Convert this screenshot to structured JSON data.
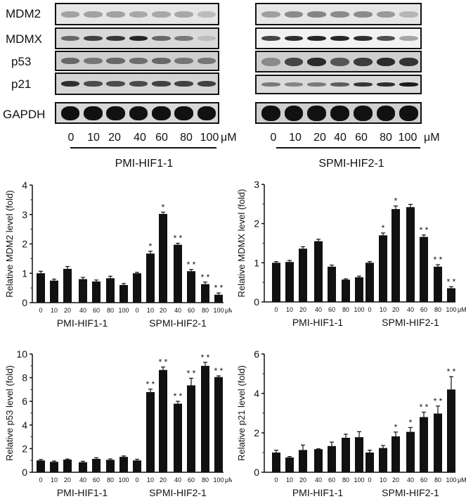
{
  "western_blot": {
    "row_labels": [
      "MDM2",
      "MDMX",
      "p53",
      "p21",
      "GAPDH"
    ],
    "lanes": [
      "0",
      "10",
      "20",
      "40",
      "60",
      "80",
      "100"
    ],
    "unit": "μM",
    "left_group": "PMI-HIF1-1",
    "right_group": "SPMI-HIF2-1"
  },
  "chart_data": [
    {
      "type": "bar",
      "title": "",
      "ylabel": "Relative MDM2 level (fold)",
      "xlabel": "",
      "ylim": [
        0,
        4
      ],
      "yticks": [
        0,
        1,
        2,
        3,
        4
      ],
      "categories": [
        "0",
        "10",
        "20",
        "40",
        "60",
        "80",
        "100"
      ],
      "unit": "μM",
      "grid": false,
      "series": [
        {
          "name": "PMI-HIF1-1",
          "values": [
            1.0,
            0.75,
            1.15,
            0.8,
            0.72,
            0.83,
            0.6
          ],
          "errors": [
            0.07,
            0.05,
            0.08,
            0.06,
            0.05,
            0.07,
            0.05
          ],
          "significance": [
            "",
            "",
            "",
            "",
            "",
            "",
            ""
          ]
        },
        {
          "name": "SPMI-HIF2-1",
          "values": [
            1.0,
            1.67,
            3.02,
            1.97,
            1.07,
            0.63,
            0.27
          ],
          "errors": [
            0.03,
            0.08,
            0.06,
            0.05,
            0.06,
            0.07,
            0.06
          ],
          "significance": [
            "",
            "*",
            "*",
            "**",
            "**",
            "**",
            "**"
          ]
        }
      ]
    },
    {
      "type": "bar",
      "title": "",
      "ylabel": "Relative MDMX level (fold)",
      "xlabel": "",
      "ylim": [
        0,
        3
      ],
      "yticks": [
        0,
        1,
        2,
        3
      ],
      "categories": [
        "0",
        "10",
        "20",
        "40",
        "60",
        "80",
        "100"
      ],
      "unit": "μM",
      "grid": false,
      "series": [
        {
          "name": "PMI-HIF1-1",
          "values": [
            1.0,
            1.02,
            1.36,
            1.55,
            0.9,
            0.57,
            0.63
          ],
          "errors": [
            0.03,
            0.04,
            0.05,
            0.05,
            0.04,
            0.02,
            0.03
          ],
          "significance": [
            "",
            "",
            "",
            "",
            "",
            "",
            ""
          ]
        },
        {
          "name": "SPMI-HIF2-1",
          "values": [
            1.0,
            1.7,
            2.37,
            2.42,
            1.66,
            0.9,
            0.35
          ],
          "errors": [
            0.03,
            0.06,
            0.08,
            0.07,
            0.05,
            0.05,
            0.04
          ],
          "significance": [
            "",
            "*",
            "*",
            "",
            "**",
            "**",
            "**"
          ]
        }
      ]
    },
    {
      "type": "bar",
      "title": "",
      "ylabel": "Relative p53 level (fold)",
      "xlabel": "",
      "ylim": [
        0,
        10
      ],
      "yticks": [
        0,
        2,
        4,
        6,
        8,
        10
      ],
      "categories": [
        "0",
        "10",
        "20",
        "40",
        "60",
        "80",
        "100"
      ],
      "unit": "μM",
      "grid": false,
      "series": [
        {
          "name": "PMI-HIF1-1",
          "values": [
            1.0,
            0.88,
            1.07,
            0.85,
            1.13,
            1.05,
            1.3
          ],
          "errors": [
            0.08,
            0.07,
            0.05,
            0.08,
            0.1,
            0.08,
            0.08
          ],
          "significance": [
            "",
            "",
            "",
            "",
            "",
            "",
            ""
          ]
        },
        {
          "name": "SPMI-HIF2-1",
          "values": [
            1.0,
            6.78,
            8.65,
            5.8,
            7.35,
            9.0,
            8.05
          ],
          "errors": [
            0.1,
            0.25,
            0.25,
            0.2,
            0.6,
            0.3,
            0.1
          ],
          "significance": [
            "",
            "**",
            "**",
            "**",
            "**",
            "**",
            "**"
          ]
        }
      ]
    },
    {
      "type": "bar",
      "title": "",
      "ylabel": "Relative p21 level (fold)",
      "xlabel": "",
      "ylim": [
        0,
        6
      ],
      "yticks": [
        0,
        2,
        4,
        6
      ],
      "categories": [
        "0",
        "10",
        "20",
        "40",
        "60",
        "80",
        "100"
      ],
      "unit": "μM",
      "grid": false,
      "series": [
        {
          "name": "PMI-HIF1-1",
          "values": [
            1.0,
            0.75,
            1.13,
            1.17,
            1.33,
            1.75,
            1.78
          ],
          "errors": [
            0.12,
            0.05,
            0.25,
            0.02,
            0.2,
            0.18,
            0.28
          ],
          "significance": [
            "",
            "",
            "",
            "",
            "",
            "",
            ""
          ]
        },
        {
          "name": "SPMI-HIF2-1",
          "values": [
            1.0,
            1.23,
            1.82,
            2.05,
            2.8,
            2.98,
            4.2
          ],
          "errors": [
            0.12,
            0.13,
            0.22,
            0.22,
            0.25,
            0.38,
            0.65
          ],
          "significance": [
            "",
            "",
            "*",
            "*",
            "**",
            "**",
            "**"
          ]
        }
      ]
    }
  ]
}
